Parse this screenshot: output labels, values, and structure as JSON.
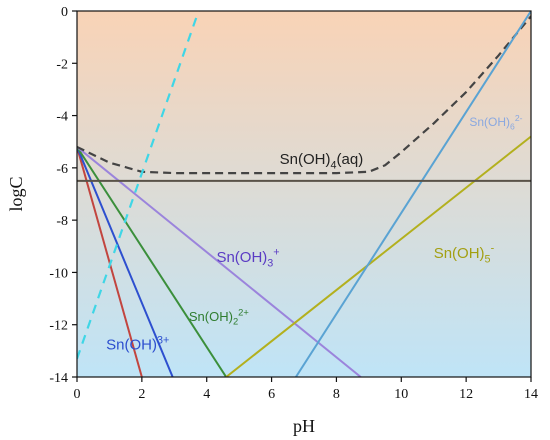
{
  "chart_data": {
    "type": "line",
    "xlabel": "pH",
    "ylabel": "logC",
    "xlim": [
      0,
      14
    ],
    "ylim": [
      -14,
      0
    ],
    "x_ticks": [
      "0",
      "2",
      "4",
      "6",
      "8",
      "10",
      "12",
      "14"
    ],
    "y_ticks": [
      "0",
      "-2",
      "-4",
      "-6",
      "-8",
      "-10",
      "-12",
      "-14"
    ],
    "background_gradient": {
      "top": "#f9d3b6",
      "bottom": "#bfe4f7"
    },
    "series": [
      {
        "name": "Sn(OH)3+",
        "label_base": "Sn(OH)",
        "label_sup": "3+",
        "color": "#c2453f",
        "dash": false,
        "x": [
          0,
          2.0
        ],
        "y": [
          -5.2,
          -14
        ]
      },
      {
        "name": "Sn(OH)3+",
        "label_base": "Sn(OH)",
        "label_sup": "3+",
        "color": "#2d4fcf",
        "dash": false,
        "x": [
          0,
          2.95
        ],
        "y": [
          -5.2,
          -14
        ]
      },
      {
        "name": "Sn(OH)2 2+",
        "label_base": "Sn(OH)",
        "label_sub": "2",
        "label_sup": "2+",
        "color": "#3b8f3b",
        "dash": false,
        "x": [
          0,
          4.6
        ],
        "y": [
          -5.2,
          -14
        ]
      },
      {
        "name": "Sn(OH)3+",
        "label_base": "Sn(OH)",
        "label_sub": "3",
        "label_sup": "+",
        "color": "#9b84dc",
        "dash": false,
        "x": [
          0,
          8.75
        ],
        "y": [
          -5.2,
          -14
        ]
      },
      {
        "name": "Sn(OH)4(aq)",
        "label_base": "Sn(OH)",
        "label_sub": "4",
        "label_tail": "(aq)",
        "color": "#444444",
        "dash": true,
        "x": [
          0,
          1,
          2,
          3,
          4,
          5,
          6,
          7,
          8,
          9,
          9.5,
          10,
          11,
          12,
          13,
          14
        ],
        "y": [
          -5.2,
          -5.8,
          -6.15,
          -6.2,
          -6.2,
          -6.2,
          -6.2,
          -6.2,
          -6.2,
          -6.15,
          -5.9,
          -5.4,
          -4.3,
          -3.1,
          -1.7,
          -0.2
        ]
      },
      {
        "name": "Sn(OH)5-",
        "label_base": "Sn(OH)",
        "label_sub": "5",
        "label_sup": "-",
        "color": "#b3b01e",
        "dash": false,
        "x": [
          4.6,
          14
        ],
        "y": [
          -14,
          -4.8
        ]
      },
      {
        "name": "Sn(OH)6 2-",
        "label_base": "Sn(OH)",
        "label_sub": "6",
        "label_sup": "2-",
        "color": "#5aa3d3",
        "dash": false,
        "x": [
          6.75,
          14
        ],
        "y": [
          -14,
          0
        ]
      },
      {
        "name": "cyan-dashed",
        "color": "#3fd6e6",
        "dash": true,
        "x": [
          0,
          3.75
        ],
        "y": [
          -13.3,
          0
        ]
      },
      {
        "name": "solubility-limit",
        "color": "#5a5248",
        "dash": false,
        "x": [
          0,
          14
        ],
        "y": [
          -6.5,
          -6.5
        ]
      }
    ],
    "labels": [
      {
        "series": 0,
        "base": "Sn(OH)",
        "sup": "3+",
        "x": 0.9,
        "y": -12.95,
        "color": "#2d4fcf",
        "size": 15
      },
      {
        "series": 2,
        "base": "Sn(OH)",
        "sub": "2",
        "sup": "2+",
        "x": 3.45,
        "y": -11.85,
        "color": "#2f7d2f",
        "size": 13
      },
      {
        "series": 3,
        "base": "Sn(OH)",
        "sub": "3",
        "sup": "+",
        "x": 4.3,
        "y": -9.6,
        "color": "#5a3bc4",
        "size": 15
      },
      {
        "series": 4,
        "base": "Sn(OH)",
        "sub": "4",
        "tail": "(aq)",
        "x": 6.25,
        "y": -5.85,
        "color": "#222222",
        "size": 15
      },
      {
        "series": 5,
        "base": "Sn(OH)",
        "sub": "5",
        "sup": "-",
        "x": 11.0,
        "y": -9.45,
        "color": "#a39f12",
        "size": 15
      },
      {
        "series": 6,
        "base": "Sn(OH)",
        "sub": "6",
        "sup": "2-",
        "x": 12.1,
        "y": -4.4,
        "color": "#8aa8e0",
        "size": 12
      }
    ]
  }
}
